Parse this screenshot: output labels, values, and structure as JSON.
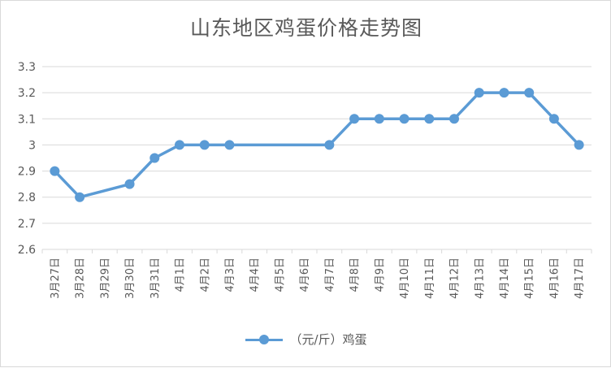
{
  "chart_data": {
    "type": "line",
    "title": "山东地区鸡蛋价格走势图",
    "categories": [
      "3月27日",
      "3月28日",
      "3月29日",
      "3月30日",
      "3月31日",
      "4月1日",
      "4月2日",
      "4月3日",
      "4月4日",
      "4月5日",
      "4月6日",
      "4月7日",
      "4月8日",
      "4月9日",
      "4月10日",
      "4月11日",
      "4月12日",
      "4月13日",
      "4月14日",
      "4月15日",
      "4月16日",
      "4月17日"
    ],
    "series": [
      {
        "name": "（元/斤）鸡蛋",
        "values": [
          2.9,
          2.8,
          null,
          2.85,
          2.95,
          3.0,
          3.0,
          3.0,
          null,
          null,
          null,
          3.0,
          3.1,
          3.1,
          3.1,
          3.1,
          3.1,
          3.2,
          3.2,
          3.2,
          3.1,
          3.0
        ]
      }
    ],
    "y_ticks": [
      "2.6",
      "2.7",
      "2.8",
      "2.9",
      "3",
      "3.1",
      "3.2",
      "3.3"
    ],
    "ylim": [
      2.6,
      3.3
    ],
    "grid": true,
    "legend_position": "bottom",
    "colors": {
      "series": "#5b9bd5",
      "grid": "#d9d9d9",
      "text": "#595959"
    }
  }
}
